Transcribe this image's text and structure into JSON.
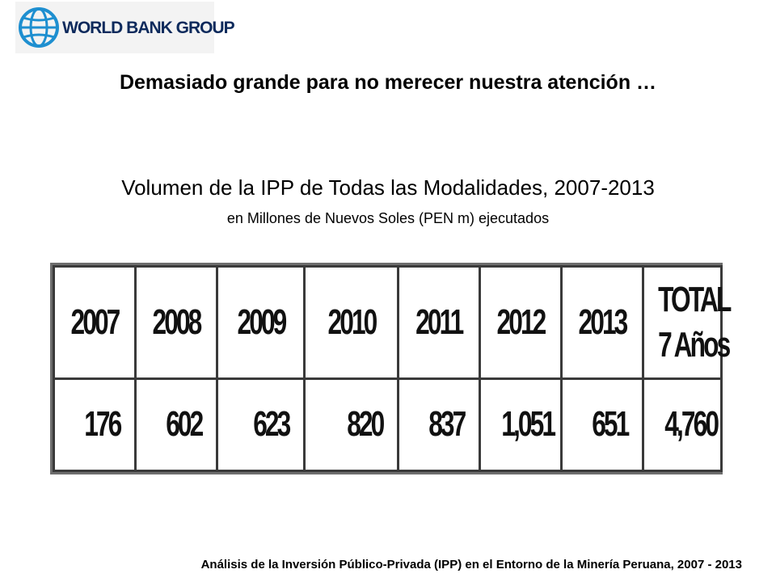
{
  "logo": {
    "text": "WORLD BANK GROUP",
    "icon": "globe-icon"
  },
  "slide_title": "Demasiado grande para no merecer nuestra atención …",
  "chart_data": {
    "type": "table",
    "title": "Volumen de la IPP de Todas las Modalidades, 2007-2013",
    "subtitle": "en Millones de Nuevos Soles (PEN m) ejecutados",
    "categories": [
      "2007",
      "2008",
      "2009",
      "2010",
      "2011",
      "2012",
      "2013"
    ],
    "values": [
      176,
      602,
      623,
      820,
      837,
      1051,
      651
    ],
    "value_labels": [
      "176",
      "602",
      "623",
      "820",
      "837",
      "1,051",
      "651"
    ],
    "total_header": [
      "TOTAL",
      "7 Años"
    ],
    "total_value": 4760,
    "total_label": "4,760"
  },
  "footer": "Análisis de la Inversión Público-Privada (IPP) en el Entorno de la Minería Peruana, 2007 - 2013",
  "colors": {
    "logo_text": "#0d2a5c",
    "logo_icon": "#1e8fd0"
  }
}
